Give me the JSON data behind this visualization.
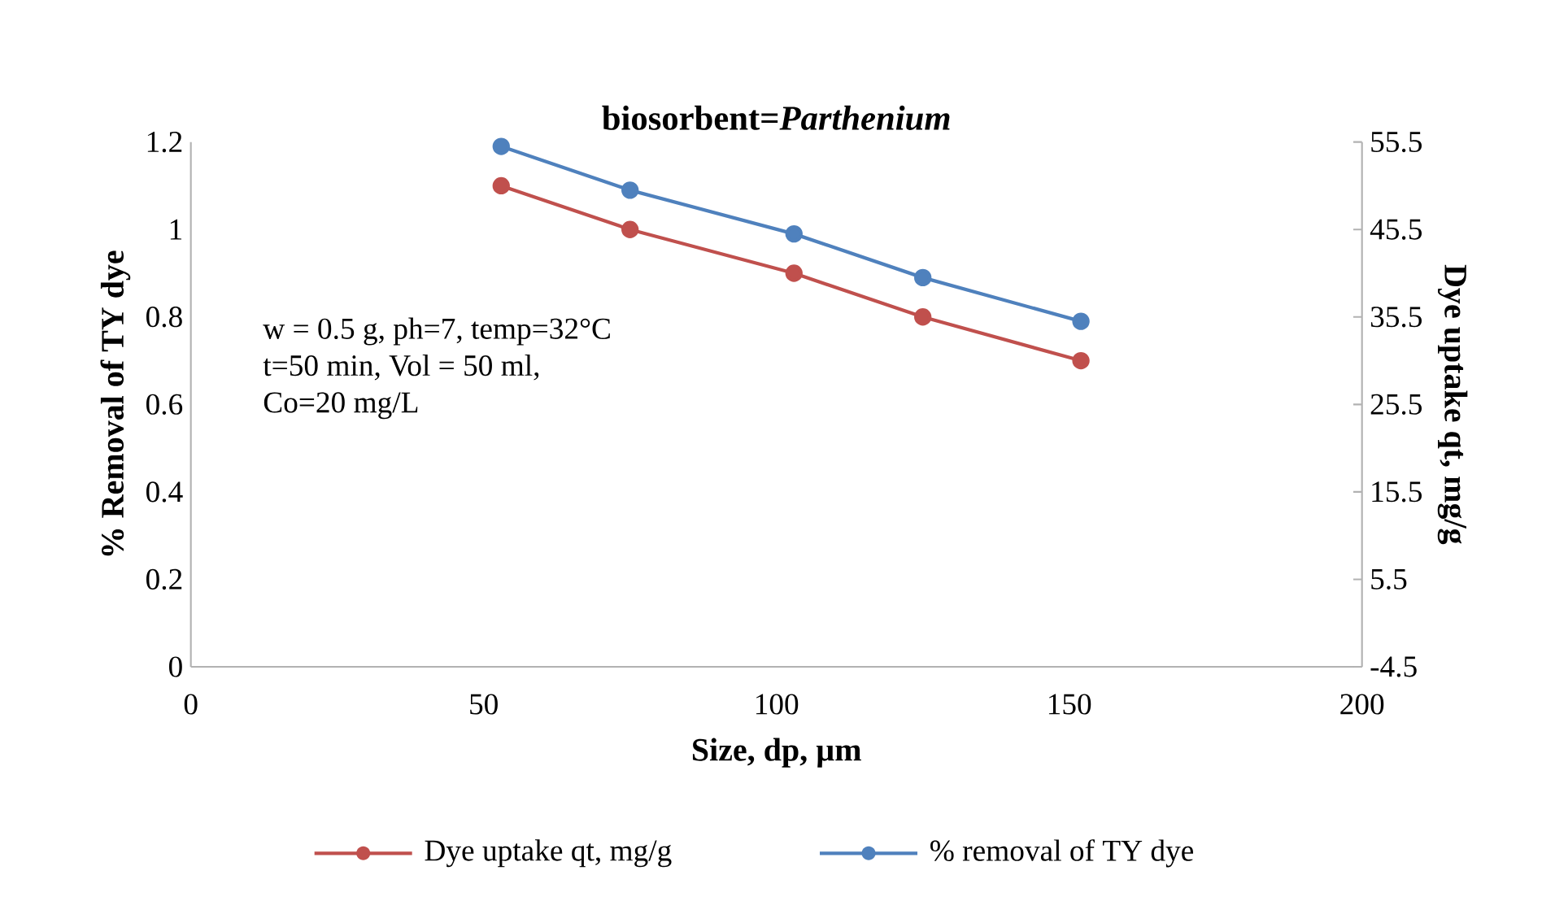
{
  "chart_data": {
    "type": "line",
    "title": "biosorbent=*Parthenium*",
    "xlabel": "Size, dp, µm",
    "ylabel": "% Removal of TY dye",
    "y2label": "Dye uptake qt, mg/g",
    "annotations": [
      "w = 0.5 g, ph=7, temp=32°C",
      "t=50 min, Vol = 50 ml,",
      "Co=20 mg/L"
    ],
    "x": [
      53,
      75,
      103,
      125,
      152
    ],
    "series": [
      {
        "name": "Dye uptake qt, mg/g",
        "color": "#c0504d",
        "values": [
          1.1,
          1.0,
          0.9,
          0.8,
          0.7
        ]
      },
      {
        "name": "% removal of TY dye",
        "color": "#4f81bd",
        "values": [
          55,
          50,
          45,
          40,
          35
        ],
        "axis": "y2"
      }
    ],
    "xlim": [
      0,
      200
    ],
    "xticks": [
      0,
      50,
      100,
      150,
      200
    ],
    "ylim": [
      0,
      1.2
    ],
    "yticks": [
      0,
      0.2,
      0.4,
      0.6,
      0.8,
      1,
      1.2
    ],
    "y2lim": [
      -4.5,
      55.5
    ],
    "y2ticks": [
      -4.5,
      5.5,
      15.5,
      25.5,
      35.5,
      45.5,
      55.5
    ],
    "marker": "circle",
    "line_style": "solid",
    "grid": false,
    "legend": "bottom"
  }
}
